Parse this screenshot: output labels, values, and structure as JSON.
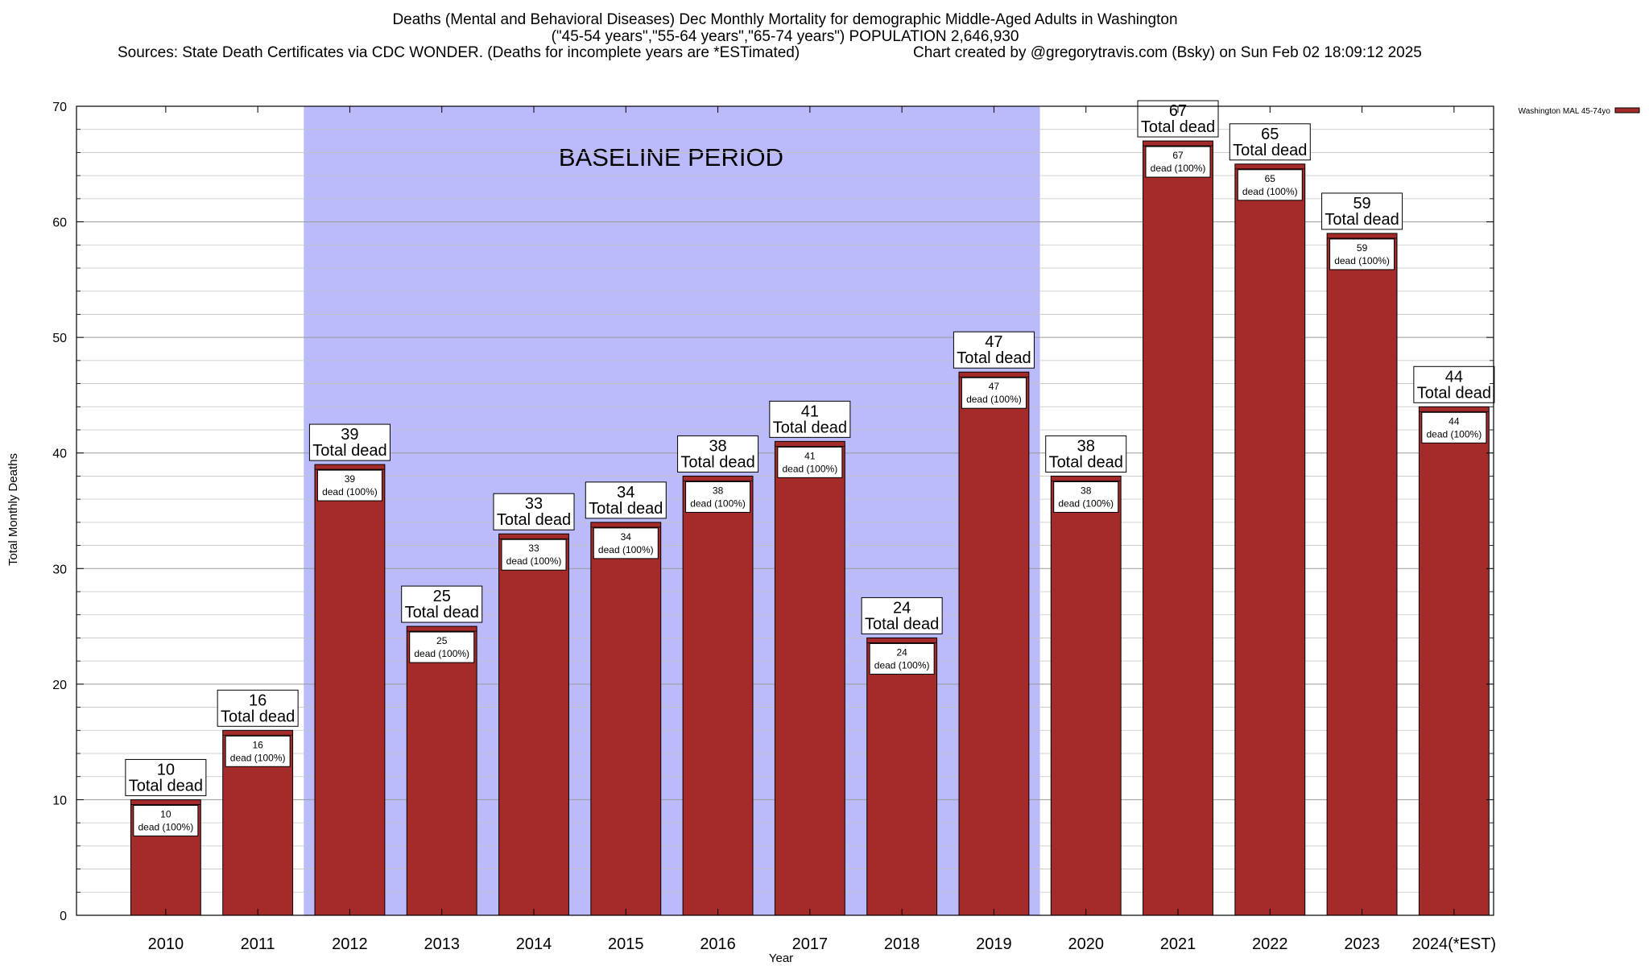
{
  "chart_data": {
    "type": "bar",
    "title_lines": [
      "Deaths (Mental and Behavioral Diseases) Dec Monthly Mortality for demographic Middle-Aged Adults in Washington",
      "(\"45-54 years\",\"55-64 years\",\"65-74 years\") POPULATION 2,646,930",
      "Sources: State Death Certificates via CDC WONDER. (Deaths for incomplete years are *ESTimated)",
      "Chart created by @gregorytravis.com (Bsky) on Sun Feb 02 18:09:12 2025"
    ],
    "xlabel": "Year",
    "ylabel": "Total Monthly Deaths",
    "ylim": [
      0,
      70
    ],
    "y_ticks": [
      0,
      10,
      20,
      30,
      40,
      50,
      60,
      70
    ],
    "grid": "horizontal",
    "legend": {
      "position": "top-right",
      "entries": [
        {
          "name": "Washington MAL 45-74yo",
          "color": "#a52a2a"
        }
      ]
    },
    "categories": [
      "2010",
      "2011",
      "2012",
      "2013",
      "2014",
      "2015",
      "2016",
      "2017",
      "2018",
      "2019",
      "2020",
      "2021",
      "2022",
      "2023",
      "2024(*EST)"
    ],
    "series": [
      {
        "name": "Washington MAL 45-74yo",
        "color": "#a52a2a",
        "values": [
          10,
          16,
          39,
          25,
          33,
          34,
          38,
          41,
          24,
          47,
          38,
          67,
          65,
          59,
          44
        ]
      }
    ],
    "total_label": "Total dead",
    "inner_label_suffix": "dead (100%)",
    "baseline": {
      "label": "BASELINE PERIOD",
      "start": "2012",
      "end": "2019",
      "color": "#bbbbfb"
    },
    "bar_color": "#a52a2a"
  }
}
